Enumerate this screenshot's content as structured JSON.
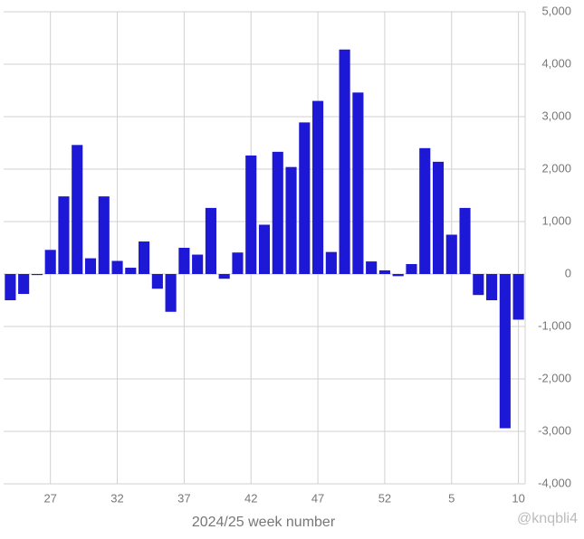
{
  "chart_data": {
    "type": "bar",
    "x_label": "2024/25 week number",
    "watermark": "@knqbli4",
    "categories": [
      null,
      null,
      null,
      "27",
      null,
      null,
      null,
      null,
      "32",
      null,
      null,
      null,
      null,
      "37",
      null,
      null,
      null,
      null,
      "42",
      null,
      null,
      null,
      null,
      "47",
      null,
      null,
      null,
      null,
      "52",
      null,
      null,
      null,
      null,
      "5",
      null,
      null,
      null,
      null,
      "10"
    ],
    "values": [
      -500,
      -380,
      -20,
      460,
      1480,
      2460,
      300,
      1480,
      250,
      120,
      620,
      -280,
      -720,
      500,
      370,
      1260,
      -90,
      410,
      2260,
      940,
      2330,
      2040,
      2890,
      3300,
      420,
      4280,
      3460,
      240,
      70,
      -40,
      190,
      2400,
      2140,
      750,
      1260,
      -400,
      -500,
      -2940,
      -870
    ],
    "color": "#1d17d6",
    "ylim": [
      -4000,
      5000
    ],
    "yticks": [
      {
        "value": -4000,
        "label": "-4,000"
      },
      {
        "value": -3000,
        "label": "-3,000"
      },
      {
        "value": -2000,
        "label": "-2,000"
      },
      {
        "value": -1000,
        "label": "-1,000"
      },
      0,
      {
        "value": 1000,
        "label": "1,000"
      },
      {
        "value": 2000,
        "label": "2,000"
      },
      {
        "value": 3000,
        "label": "3,000"
      },
      {
        "value": 4000,
        "label": "4,000"
      },
      {
        "value": 5000,
        "label": "5,000"
      }
    ],
    "y_axis_side": "right",
    "grid": true
  }
}
